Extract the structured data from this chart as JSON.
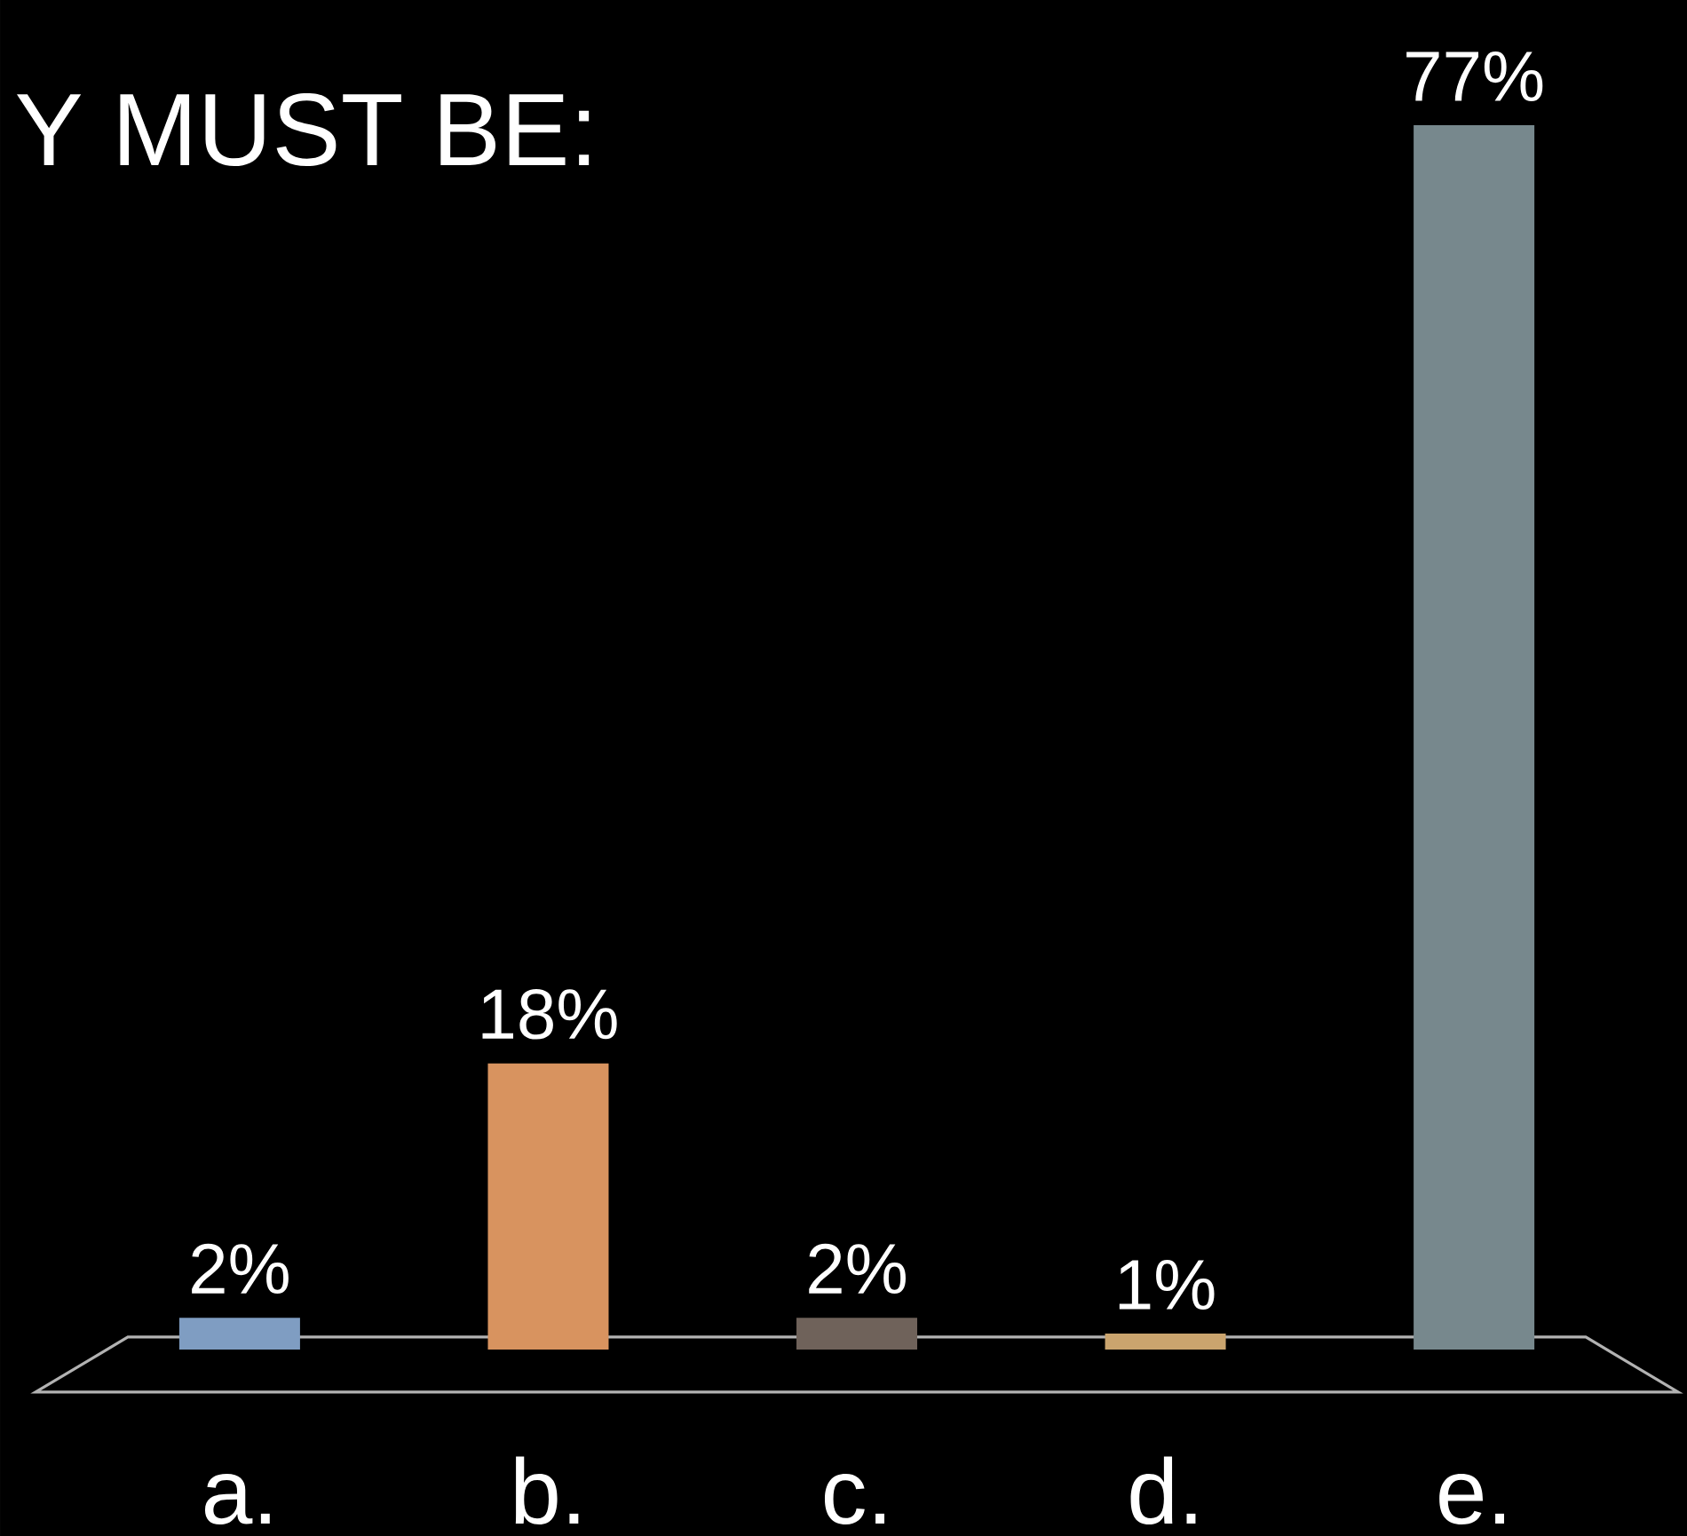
{
  "chart_data": {
    "type": "bar",
    "title": "Y MUST BE:",
    "categories": [
      "a.",
      "b.",
      "c.",
      "d.",
      "e."
    ],
    "values": [
      2,
      18,
      2,
      1,
      77
    ],
    "colors": [
      "#7f9dc2",
      "#d8935f",
      "#6f625a",
      "#caa46e",
      "#77888d"
    ],
    "value_labels": [
      "2%",
      "18%",
      "2%",
      "1%",
      "77%"
    ],
    "tick_labels": "x"
  }
}
